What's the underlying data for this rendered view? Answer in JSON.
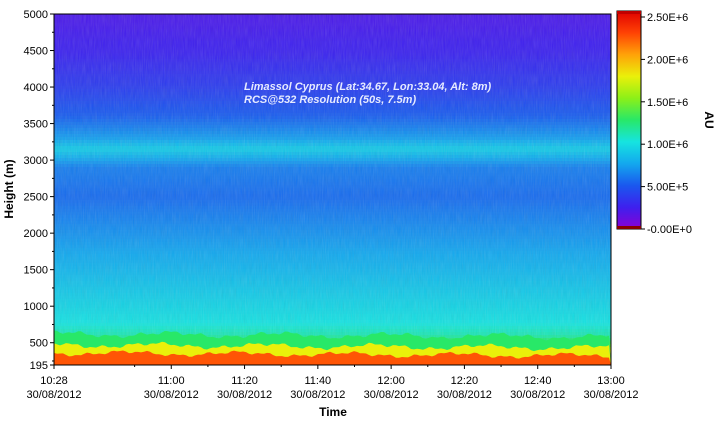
{
  "chart_data": {
    "type": "heatmap",
    "title": "",
    "annotation_lines": [
      "Limassol Cyprus (Lat:34.67, Lon:33.04, Alt: 8m)",
      "RCS@532 Resolution (50s, 7.5m)"
    ],
    "xlabel": "Time",
    "ylabel": "Height (m)",
    "colorbar_label": "AU",
    "x_ticks": [
      {
        "time": "10:28",
        "date": "30/08/2012",
        "minutes": 628
      },
      {
        "time": "11:00",
        "date": "30/08/2012",
        "minutes": 660
      },
      {
        "time": "11:20",
        "date": "30/08/2012",
        "minutes": 680
      },
      {
        "time": "11:40",
        "date": "30/08/2012",
        "minutes": 700
      },
      {
        "time": "12:00",
        "date": "30/08/2012",
        "minutes": 720
      },
      {
        "time": "12:20",
        "date": "30/08/2012",
        "minutes": 740
      },
      {
        "time": "12:40",
        "date": "30/08/2012",
        "minutes": 760
      },
      {
        "time": "13:00",
        "date": "30/08/2012",
        "minutes": 780
      }
    ],
    "xlim_minutes": [
      628,
      780
    ],
    "y_ticks": [
      195,
      500,
      1000,
      1500,
      2000,
      2500,
      3000,
      3500,
      4000,
      4500,
      5000
    ],
    "ylim": [
      195,
      5000
    ],
    "colorbar_ticks": [
      {
        "label": "-0.00E+0",
        "value": 0
      },
      {
        "label": "5.00E+5",
        "value": 500000
      },
      {
        "label": "1.00E+6",
        "value": 1000000
      },
      {
        "label": "1.50E+6",
        "value": 1500000
      },
      {
        "label": "2.00E+6",
        "value": 2000000
      },
      {
        "label": "2.50E+6",
        "value": 2500000
      }
    ],
    "colorbar_range": [
      0,
      2500000
    ],
    "colormap": [
      "#8a00d4",
      "#3e20ee",
      "#1a58ee",
      "#13a8ee",
      "#16e4e0",
      "#28e868",
      "#8cf018",
      "#eaf00a",
      "#ffa208",
      "#ff4204",
      "#e00000"
    ],
    "profile": [
      {
        "height": 195,
        "value": 2450000
      },
      {
        "height": 300,
        "value": 2200000
      },
      {
        "height": 380,
        "value": 1750000
      },
      {
        "height": 450,
        "value": 1450000
      },
      {
        "height": 520,
        "value": 1250000
      },
      {
        "height": 600,
        "value": 1100000
      },
      {
        "height": 800,
        "value": 980000
      },
      {
        "height": 1200,
        "value": 880000
      },
      {
        "height": 1600,
        "value": 780000
      },
      {
        "height": 2000,
        "value": 680000
      },
      {
        "height": 2500,
        "value": 560000
      },
      {
        "height": 2900,
        "value": 620000
      },
      {
        "height": 3150,
        "value": 900000
      },
      {
        "height": 3300,
        "value": 720000
      },
      {
        "height": 3600,
        "value": 520000
      },
      {
        "height": 4000,
        "value": 380000
      },
      {
        "height": 4500,
        "value": 260000
      },
      {
        "height": 5000,
        "value": 200000
      }
    ]
  }
}
